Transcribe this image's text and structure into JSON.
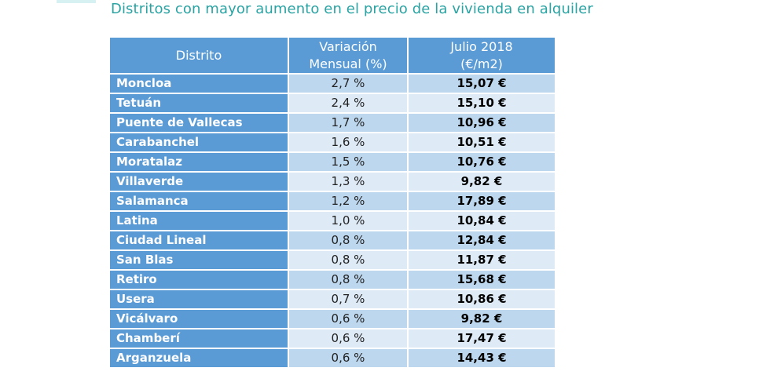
{
  "title": "Distritos con mayor aumento en el precio de la vivienda en alquiler",
  "colors": {
    "title": "#2aa3a3",
    "header_bg": "#5b9bd5",
    "row_odd": "#bdd7ee",
    "row_even": "#deebf7"
  },
  "table": {
    "headers": {
      "distrito": "Distrito",
      "variacion_line1": "Variación",
      "variacion_line2": "Mensual (%)",
      "precio_line1": "Julio 2018",
      "precio_line2": "(€/m2)"
    },
    "rows": [
      {
        "distrito": "Moncloa",
        "variacion": "2,7 %",
        "precio": "15,07 €"
      },
      {
        "distrito": "Tetuán",
        "variacion": "2,4 %",
        "precio": "15,10 €"
      },
      {
        "distrito": "Puente de Vallecas",
        "variacion": "1,7 %",
        "precio": "10,96 €"
      },
      {
        "distrito": "Carabanchel",
        "variacion": "1,6 %",
        "precio": "10,51 €"
      },
      {
        "distrito": "Moratalaz",
        "variacion": "1,5 %",
        "precio": "10,76 €"
      },
      {
        "distrito": "Villaverde",
        "variacion": "1,3 %",
        "precio": "9,82 €"
      },
      {
        "distrito": "Salamanca",
        "variacion": "1,2 %",
        "precio": "17,89 €"
      },
      {
        "distrito": "Latina",
        "variacion": "1,0 %",
        "precio": "10,84 €"
      },
      {
        "distrito": "Ciudad Lineal",
        "variacion": "0,8 %",
        "precio": "12,84 €"
      },
      {
        "distrito": "San Blas",
        "variacion": "0,8 %",
        "precio": "11,87 €"
      },
      {
        "distrito": "Retiro",
        "variacion": "0,8 %",
        "precio": "15,68 €"
      },
      {
        "distrito": "Usera",
        "variacion": "0,7 %",
        "precio": "10,86 €"
      },
      {
        "distrito": "Vicálvaro",
        "variacion": "0,6 %",
        "precio": "9,82 €"
      },
      {
        "distrito": "Chamberí",
        "variacion": "0,6 %",
        "precio": "17,47 €"
      },
      {
        "distrito": "Arganzuela",
        "variacion": "0,6 %",
        "precio": "14,43 €"
      }
    ]
  }
}
